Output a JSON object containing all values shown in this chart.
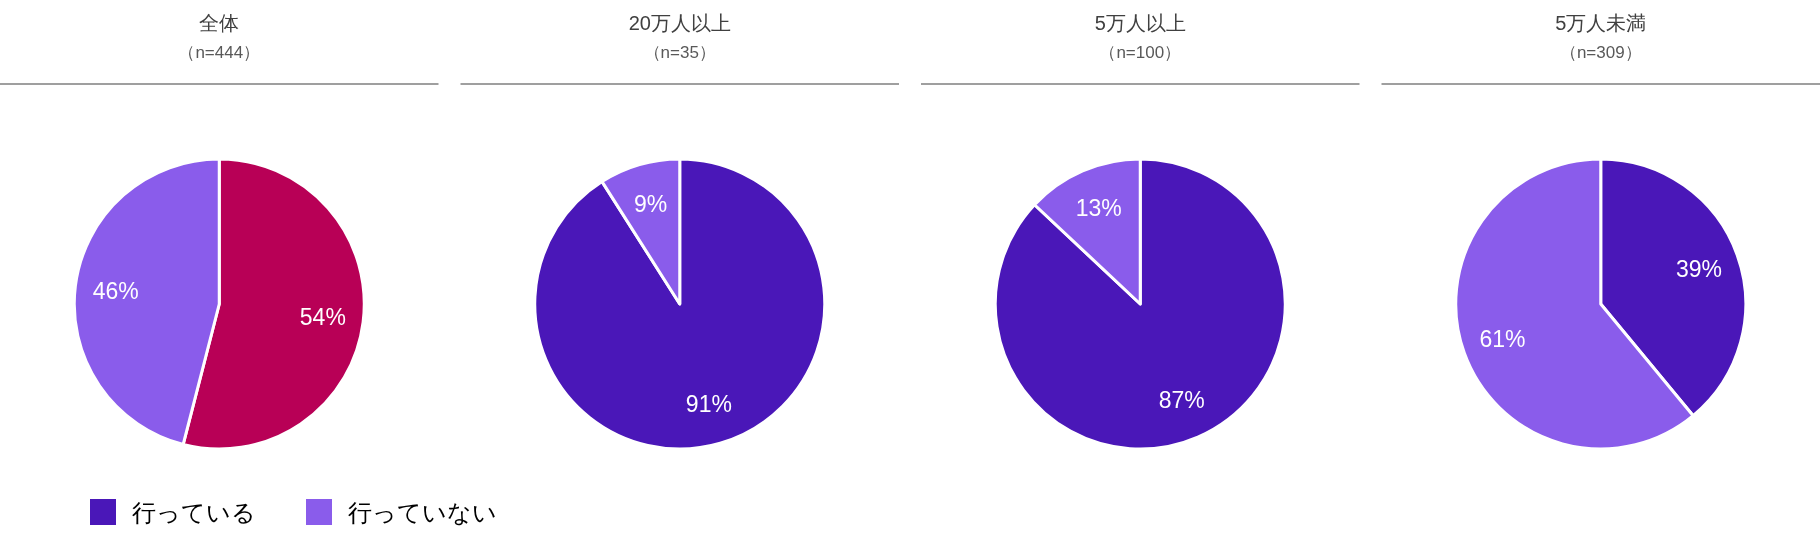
{
  "chart_data": [
    {
      "type": "pie",
      "title": "全体",
      "subtitle": "（n=444）",
      "categories": [
        null,
        null
      ],
      "values": [
        54,
        46
      ],
      "colors": [
        "#b80056",
        "#8a5ceb"
      ],
      "value_labels": [
        "54%",
        "46%"
      ]
    },
    {
      "type": "pie",
      "title": "20万人以上",
      "subtitle": "（n=35）",
      "categories": [
        "行っている",
        "行っていない"
      ],
      "values": [
        91,
        9
      ],
      "colors": [
        "#4a17b8",
        "#8a5ceb"
      ],
      "value_labels": [
        "91%",
        "9%"
      ],
      "legend": "bottom left"
    },
    {
      "type": "pie",
      "title": "5万人以上",
      "subtitle": "（n=100）",
      "categories": [
        null,
        null
      ],
      "values": [
        87,
        13
      ],
      "colors": [
        "#4a17b8",
        "#8a5ceb"
      ],
      "value_labels": [
        "87%",
        "13%"
      ]
    },
    {
      "type": "pie",
      "title": "5万人未満",
      "subtitle": "（n=309）",
      "categories": [
        null,
        null
      ],
      "values": [
        39,
        61
      ],
      "colors": [
        "#4a17b8",
        "#8a5ceb"
      ],
      "value_labels": [
        "39%",
        "61%"
      ]
    }
  ]
}
